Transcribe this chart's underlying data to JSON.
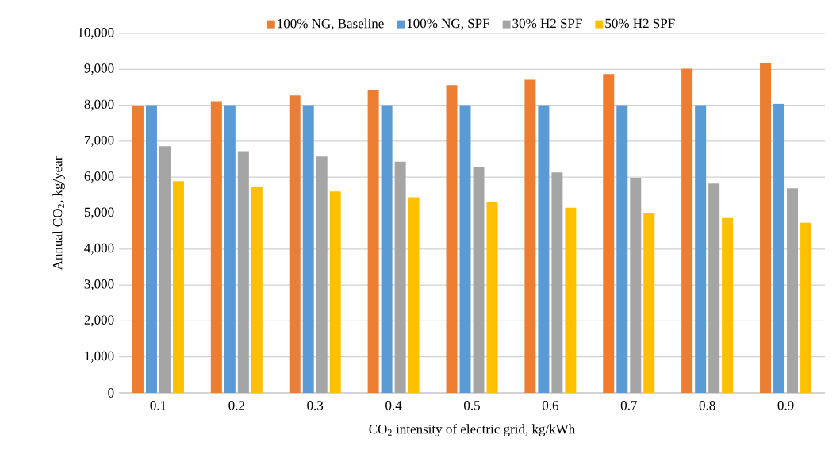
{
  "chart_data": {
    "type": "bar",
    "xlabel": "CO$_{2}$ intensity of electric grid, kg/kWh",
    "ylabel": "Annual CO$_{2}$, kg/year",
    "categories": [
      "0.1",
      "0.2",
      "0.3",
      "0.4",
      "0.5",
      "0.6",
      "0.7",
      "0.8",
      "0.9"
    ],
    "series": [
      {
        "name": "100% NG, Baseline",
        "color": "#ed7d31",
        "values": [
          7970,
          8110,
          8270,
          8420,
          8560,
          8710,
          8870,
          9020,
          9160
        ]
      },
      {
        "name": "100% NG, SPF",
        "color": "#5b9bd5",
        "values": [
          8000,
          8000,
          8000,
          8000,
          8000,
          8000,
          8000,
          8000,
          8040
        ]
      },
      {
        "name": "30% H2 SPF",
        "color": "#a5a5a5",
        "values": [
          6860,
          6720,
          6570,
          6430,
          6270,
          6130,
          5980,
          5820,
          5690
        ]
      },
      {
        "name": "50% H2 SPF",
        "color": "#ffc000",
        "values": [
          5890,
          5740,
          5600,
          5440,
          5300,
          5150,
          5010,
          4860,
          4730
        ]
      }
    ],
    "ylim": [
      0,
      10000
    ],
    "yticks": [
      0,
      {
        "value": 1000,
        "label": "1,000"
      },
      {
        "value": 2000,
        "label": "2,000"
      },
      {
        "value": 3000,
        "label": "3,000"
      },
      {
        "value": 4000,
        "label": "4,000"
      },
      {
        "value": 5000,
        "label": "5,000"
      },
      {
        "value": 6000,
        "label": "6,000"
      },
      {
        "value": 7000,
        "label": "7,000"
      },
      {
        "value": 8000,
        "label": "8,000"
      },
      {
        "value": 9000,
        "label": "9,000"
      },
      {
        "value": 10000,
        "label": "10,000"
      }
    ],
    "grid": "y",
    "legend": "top"
  }
}
